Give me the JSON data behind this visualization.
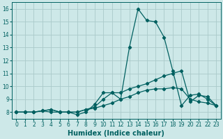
{
  "xlabel": "Humidex (Indice chaleur)",
  "ylabel": "",
  "xlim": [
    -0.5,
    23.5
  ],
  "ylim": [
    7.5,
    16.5
  ],
  "yticks": [
    8,
    9,
    10,
    11,
    12,
    13,
    14,
    15,
    16
  ],
  "xticks": [
    0,
    1,
    2,
    3,
    4,
    5,
    6,
    7,
    8,
    9,
    10,
    11,
    12,
    13,
    14,
    15,
    16,
    17,
    18,
    19,
    20,
    21,
    22,
    23
  ],
  "background_color": "#cde8e8",
  "grid_color": "#aacaca",
  "line_color": "#006060",
  "series": [
    [
      8.0,
      8.0,
      8.0,
      8.1,
      8.0,
      8.0,
      8.0,
      7.8,
      8.0,
      8.6,
      9.5,
      9.5,
      9.0,
      13.0,
      16.0,
      15.1,
      15.0,
      13.8,
      11.2,
      8.5,
      9.3,
      9.4,
      9.0,
      8.5
    ],
    [
      8.0,
      8.0,
      8.0,
      8.1,
      8.2,
      8.0,
      8.0,
      8.0,
      8.2,
      8.4,
      9.0,
      9.5,
      9.5,
      9.8,
      10.0,
      10.2,
      10.5,
      10.8,
      11.0,
      11.2,
      8.8,
      9.3,
      9.2,
      8.5
    ],
    [
      8.0,
      8.0,
      8.0,
      8.1,
      8.2,
      8.0,
      8.0,
      8.0,
      8.2,
      8.3,
      8.5,
      8.7,
      9.0,
      9.2,
      9.5,
      9.7,
      9.8,
      9.8,
      9.9,
      9.8,
      9.0,
      8.8,
      8.7,
      8.5
    ]
  ],
  "marker": "D",
  "markersize": 2.2,
  "linewidth": 0.9,
  "xlabel_fontsize": 7,
  "tick_fontsize": 5.5
}
